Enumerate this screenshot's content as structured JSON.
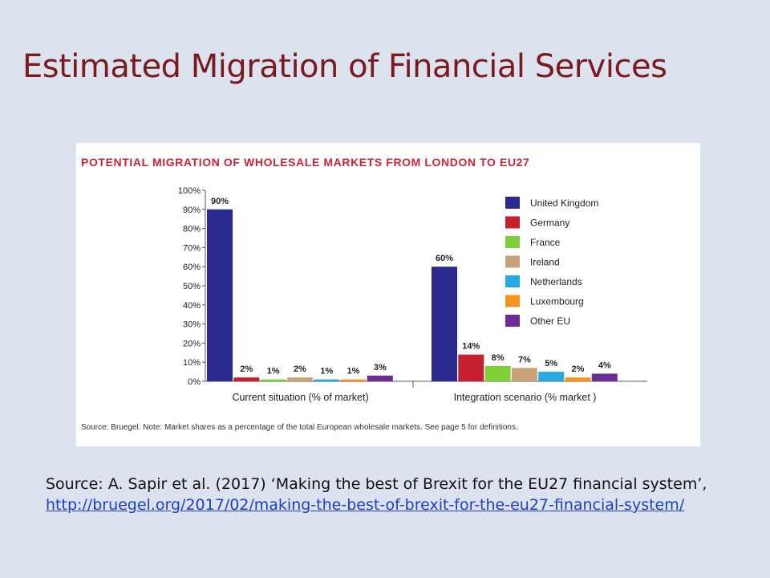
{
  "slide": {
    "title": "Estimated Migration of Financial Services",
    "source_line": "Source: A. Sapir et al. (2017) ‘Making the best of Brexit for the EU27 financial system’,",
    "source_link": "http://bruegel.org/2017/02/making-the-best-of-brexit-for-the-eu27-financial-system/"
  },
  "chart_data": {
    "type": "bar",
    "title": "POTENTIAL MIGRATION OF WHOLESALE MARKETS FROM LONDON TO EU27",
    "categories": [
      "Current situation (% of market)",
      "Integration scenario (% market )"
    ],
    "series": [
      {
        "name": "United Kingdom",
        "color": "#2b2b8f",
        "values": [
          90,
          60
        ]
      },
      {
        "name": "Germany",
        "color": "#c4202e",
        "values": [
          2,
          14
        ]
      },
      {
        "name": "France",
        "color": "#7fcf3b",
        "values": [
          1,
          8
        ]
      },
      {
        "name": "Ireland",
        "color": "#c9a27a",
        "values": [
          2,
          7
        ]
      },
      {
        "name": "Netherlands",
        "color": "#27a9e1",
        "values": [
          1,
          5
        ]
      },
      {
        "name": "Luxembourg",
        "color": "#f7941d",
        "values": [
          1,
          2
        ]
      },
      {
        "name": "Other EU",
        "color": "#6a2d91",
        "values": [
          3,
          4
        ]
      }
    ],
    "value_labels": [
      [
        "90%",
        "2%",
        "1%",
        "2%",
        "1%",
        "1%",
        "3%"
      ],
      [
        "60%",
        "14%",
        "8%",
        "7%",
        "5%",
        "2%",
        "4%"
      ]
    ],
    "yticks": [
      "0%",
      "10%",
      "20%",
      "30%",
      "40%",
      "50%",
      "60%",
      "70%",
      "80%",
      "90%",
      "100%"
    ],
    "ylim": [
      0,
      100
    ],
    "legend_position": "top-right",
    "note": "Source: Bruegel. Note: Market shares as a percentage of the total European wholesale markets. See page 5 for definitions."
  }
}
